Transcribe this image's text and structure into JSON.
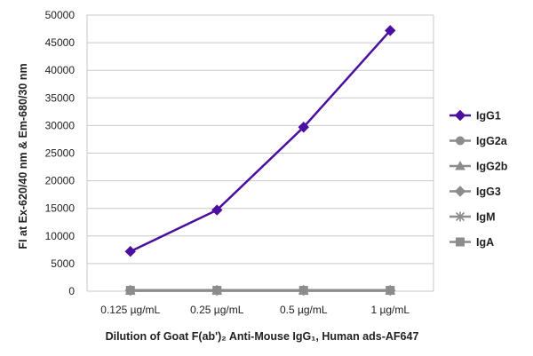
{
  "chart_data": {
    "type": "line",
    "title": "",
    "xlabel": "Dilution of Goat F(ab')₂ Anti-Mouse IgG₁, Human ads-AF647",
    "ylabel": "FI at Ex-620/40 nm & Em-680/30 nm",
    "categories": [
      "0.125 µg/mL",
      "0.25 µg/mL",
      "0.5 µg/mL",
      "1 µg/mL"
    ],
    "ylim": [
      0,
      50000
    ],
    "yticks": [
      0,
      5000,
      10000,
      15000,
      20000,
      25000,
      30000,
      35000,
      40000,
      45000,
      50000
    ],
    "grid": true,
    "legend_position": "right",
    "series": [
      {
        "name": "IgG1",
        "values": [
          7200,
          14700,
          29700,
          47200
        ],
        "color": "#4b0fa0",
        "marker": "diamond"
      },
      {
        "name": "IgG2a",
        "values": [
          150,
          150,
          150,
          150
        ],
        "color": "#8c8c8c",
        "marker": "circle"
      },
      {
        "name": "IgG2b",
        "values": [
          150,
          150,
          150,
          150
        ],
        "color": "#8c8c8c",
        "marker": "triangle"
      },
      {
        "name": "IgG3",
        "values": [
          150,
          150,
          150,
          150
        ],
        "color": "#8c8c8c",
        "marker": "diamond"
      },
      {
        "name": "IgM",
        "values": [
          150,
          150,
          150,
          150
        ],
        "color": "#8c8c8c",
        "marker": "star"
      },
      {
        "name": "IgA",
        "values": [
          150,
          150,
          150,
          150
        ],
        "color": "#8c8c8c",
        "marker": "square"
      }
    ]
  }
}
